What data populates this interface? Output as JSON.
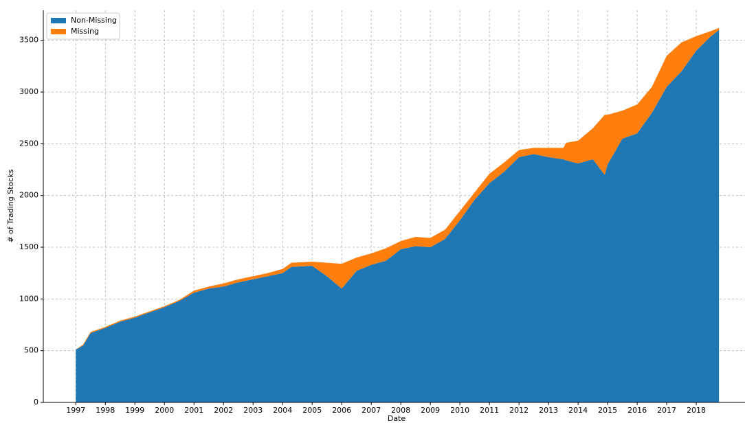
{
  "chart_data": {
    "type": "stacked_area",
    "xlabel": "Date",
    "ylabel": "# of Trading Stocks",
    "x": [
      1997,
      1997.25,
      1997.5,
      1998,
      1998.5,
      1999,
      1999.5,
      2000,
      2000.5,
      2001,
      2001.5,
      2002,
      2002.5,
      2003,
      2003.5,
      2004,
      2004.3,
      2005,
      2005.5,
      2006,
      2006.5,
      2007,
      2007.5,
      2008,
      2008.5,
      2009,
      2009.5,
      2010,
      2010.5,
      2011,
      2011.5,
      2012,
      2012.5,
      2013,
      2013.5,
      2013.6,
      2014,
      2014.5,
      2014.9,
      2015,
      2015.5,
      2016,
      2016.5,
      2017,
      2017.5,
      2018,
      2018.5,
      2018.77
    ],
    "series": [
      {
        "name": "Non-Missing",
        "color": "#1f77b4",
        "values": [
          510,
          550,
          670,
          720,
          780,
          820,
          870,
          920,
          980,
          1060,
          1100,
          1120,
          1160,
          1190,
          1220,
          1250,
          1310,
          1320,
          1220,
          1100,
          1270,
          1330,
          1370,
          1480,
          1510,
          1500,
          1580,
          1760,
          1960,
          2120,
          2230,
          2370,
          2400,
          2370,
          2350,
          2340,
          2310,
          2350,
          2200,
          2300,
          2550,
          2600,
          2800,
          3050,
          3200,
          3400,
          3540,
          3600
        ]
      },
      {
        "name": "Missing",
        "color": "#ff7f0e",
        "values": [
          0,
          10,
          10,
          10,
          10,
          10,
          10,
          10,
          10,
          20,
          20,
          30,
          30,
          30,
          30,
          40,
          40,
          40,
          130,
          240,
          130,
          110,
          120,
          80,
          90,
          90,
          90,
          90,
          70,
          90,
          90,
          70,
          60,
          90,
          110,
          170,
          220,
          300,
          580,
          480,
          270,
          280,
          250,
          300,
          280,
          140,
          50,
          20
        ]
      }
    ],
    "xlim": [
      1995.9,
      2019.65
    ],
    "xticks": [
      1997,
      1998,
      1999,
      2000,
      2001,
      2002,
      2003,
      2004,
      2005,
      2006,
      2007,
      2008,
      2009,
      2010,
      2011,
      2012,
      2013,
      2014,
      2015,
      2016,
      2017,
      2018
    ],
    "ylim": [
      0,
      3790
    ],
    "yticks": [
      0,
      500,
      1000,
      1500,
      2000,
      2500,
      3000,
      3500
    ],
    "grid": true,
    "legend": "upper-left"
  }
}
